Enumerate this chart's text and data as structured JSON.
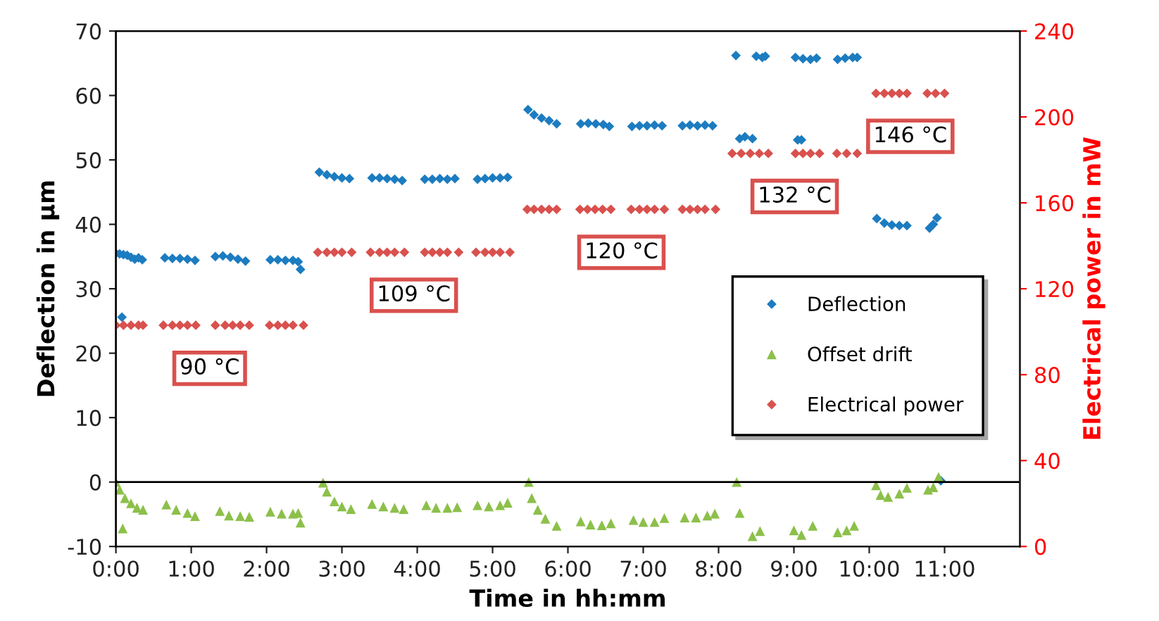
{
  "chart_data": {
    "type": "scatter",
    "xlabel": "Time in hh:mm",
    "ylabel": "Deflection in µm",
    "y2label": "Electrical power in mW",
    "xlim": [
      0,
      12
    ],
    "xticks": [
      {
        "value": 0,
        "label": "0:00"
      },
      {
        "value": 1,
        "label": "1:00"
      },
      {
        "value": 2,
        "label": "2:00"
      },
      {
        "value": 3,
        "label": "3:00"
      },
      {
        "value": 4,
        "label": "4:00"
      },
      {
        "value": 5,
        "label": "5:00"
      },
      {
        "value": 6,
        "label": "6:00"
      },
      {
        "value": 7,
        "label": "7:00"
      },
      {
        "value": 8,
        "label": "8:00"
      },
      {
        "value": 9,
        "label": "9:00"
      },
      {
        "value": 10,
        "label": "10:00"
      },
      {
        "value": 11,
        "label": "11:00"
      }
    ],
    "ylim": [
      -10,
      70
    ],
    "yticks": [
      -10,
      0,
      10,
      20,
      30,
      40,
      50,
      60,
      70
    ],
    "y2lim": [
      0,
      240
    ],
    "y2ticks": [
      0,
      40,
      80,
      120,
      160,
      200,
      240
    ],
    "grid": false,
    "legend": "right",
    "ref_lines": [
      {
        "axis": "y",
        "value": 0,
        "color": "#000000"
      }
    ],
    "annotations": [
      "90 °C",
      "109 °C",
      "120 °C",
      "132 °C",
      "146 °C"
    ],
    "series": [
      {
        "name": "Deflection",
        "color": "#1c7cc0",
        "marker": "diamond",
        "x": [
          0.0,
          0.05,
          0.08,
          0.1,
          0.15,
          0.2,
          0.25,
          0.3,
          0.35,
          0.65,
          0.75,
          0.85,
          0.95,
          1.05,
          1.32,
          1.42,
          1.52,
          1.62,
          1.72,
          2.05,
          2.15,
          2.25,
          2.35,
          2.42,
          2.45,
          2.7,
          2.8,
          2.9,
          3.0,
          3.1,
          3.4,
          3.5,
          3.6,
          3.7,
          3.8,
          4.1,
          4.2,
          4.3,
          4.4,
          4.5,
          4.8,
          4.9,
          5.0,
          5.1,
          5.2,
          5.47,
          5.55,
          5.65,
          5.75,
          5.85,
          6.17,
          6.27,
          6.37,
          6.47,
          6.55,
          6.85,
          6.95,
          7.05,
          7.15,
          7.25,
          7.52,
          7.62,
          7.72,
          7.82,
          7.92,
          8.23,
          8.28,
          8.35,
          8.45,
          8.5,
          8.58,
          8.62,
          9.02,
          9.05,
          9.1,
          9.12,
          9.22,
          9.3,
          9.58,
          9.68,
          9.78,
          9.84,
          10.1,
          10.2,
          10.3,
          10.4,
          10.5,
          10.8,
          10.85,
          10.9,
          10.95
        ],
        "values": [
          35.5,
          35.4,
          25.6,
          35.3,
          35.2,
          34.9,
          34.6,
          34.8,
          34.5,
          34.8,
          34.7,
          34.7,
          34.6,
          34.4,
          35.0,
          35.1,
          34.9,
          34.6,
          34.3,
          34.5,
          34.5,
          34.4,
          34.4,
          34.2,
          33.0,
          48.1,
          47.7,
          47.4,
          47.2,
          47.1,
          47.2,
          47.2,
          47.1,
          47.0,
          46.8,
          47.0,
          47.0,
          47.1,
          47.0,
          47.1,
          47.0,
          47.1,
          47.2,
          47.2,
          47.3,
          57.8,
          57.0,
          56.5,
          56.1,
          55.6,
          55.6,
          55.7,
          55.6,
          55.5,
          55.2,
          55.2,
          55.3,
          55.3,
          55.4,
          55.3,
          55.3,
          55.4,
          55.3,
          55.4,
          55.3,
          66.2,
          53.3,
          53.6,
          53.3,
          66.1,
          65.9,
          66.1,
          65.9,
          53.1,
          53.1,
          65.7,
          65.6,
          65.8,
          65.6,
          65.8,
          65.9,
          65.9,
          40.9,
          40.2,
          39.9,
          39.8,
          39.8,
          39.4,
          40.0,
          41.0,
          0.2
        ]
      },
      {
        "name": "Offset drift",
        "color": "#8cc04a",
        "marker": "triangle",
        "x": [
          0.0,
          0.05,
          0.09,
          0.12,
          0.2,
          0.28,
          0.36,
          0.67,
          0.8,
          0.95,
          1.05,
          1.38,
          1.5,
          1.65,
          1.77,
          2.05,
          2.2,
          2.35,
          2.42,
          2.45,
          2.75,
          2.8,
          2.9,
          3.0,
          3.12,
          3.4,
          3.55,
          3.7,
          3.82,
          4.12,
          4.25,
          4.4,
          4.53,
          4.8,
          4.95,
          5.1,
          5.2,
          5.48,
          5.52,
          5.6,
          5.7,
          5.85,
          6.17,
          6.3,
          6.45,
          6.57,
          6.87,
          7.0,
          7.15,
          7.28,
          7.55,
          7.7,
          7.85,
          7.95,
          8.24,
          8.28,
          8.45,
          8.55,
          9.0,
          9.1,
          9.25,
          9.58,
          9.7,
          9.8,
          10.09,
          10.15,
          10.25,
          10.4,
          10.5,
          10.78,
          10.85,
          10.92
        ],
        "values": [
          0.0,
          -1.2,
          -7.2,
          -2.5,
          -3.3,
          -4.0,
          -4.3,
          -3.5,
          -4.3,
          -4.8,
          -5.3,
          -4.5,
          -5.2,
          -5.3,
          -5.4,
          -4.6,
          -4.9,
          -4.9,
          -4.8,
          -6.3,
          -0.1,
          -1.5,
          -3.0,
          -3.8,
          -4.2,
          -3.4,
          -3.8,
          -4.0,
          -4.2,
          -3.6,
          -4.0,
          -4.0,
          -3.9,
          -3.6,
          -3.8,
          -3.6,
          -3.2,
          0.0,
          -2.5,
          -4.3,
          -5.7,
          -6.8,
          -6.1,
          -6.6,
          -6.7,
          -6.4,
          -5.9,
          -6.2,
          -6.2,
          -5.6,
          -5.5,
          -5.5,
          -5.2,
          -4.9,
          0.0,
          -4.8,
          -8.4,
          -7.6,
          -7.5,
          -8.2,
          -6.8,
          -7.8,
          -7.5,
          -6.8,
          -0.5,
          -2.0,
          -2.3,
          -1.8,
          -0.9,
          -1.2,
          -0.8,
          0.8
        ]
      },
      {
        "name": "Electrical power",
        "color": "#d9514e",
        "marker": "diamond",
        "axis": "y2",
        "x": [
          0.0,
          0.1,
          0.2,
          0.3,
          0.36,
          0.63,
          0.75,
          0.85,
          0.95,
          1.06,
          1.32,
          1.45,
          1.55,
          1.65,
          1.77,
          2.04,
          2.15,
          2.25,
          2.35,
          2.49,
          2.68,
          2.8,
          2.9,
          3.0,
          3.13,
          3.38,
          3.5,
          3.6,
          3.7,
          3.83,
          4.1,
          4.2,
          4.3,
          4.4,
          4.55,
          4.78,
          4.9,
          5.0,
          5.1,
          5.23,
          5.46,
          5.55,
          5.65,
          5.75,
          5.85,
          6.16,
          6.26,
          6.36,
          6.46,
          6.57,
          6.84,
          6.95,
          7.05,
          7.15,
          7.28,
          7.52,
          7.62,
          7.72,
          7.82,
          7.96,
          8.18,
          8.3,
          8.42,
          8.54,
          8.66,
          9.02,
          9.12,
          9.22,
          9.34,
          9.57,
          9.7,
          9.84,
          10.09,
          10.2,
          10.3,
          10.4,
          10.5,
          10.77,
          10.88,
          11.0
        ],
        "values": [
          103,
          103,
          103,
          103,
          103,
          103,
          103,
          103,
          103,
          103,
          103,
          103,
          103,
          103,
          103,
          103,
          103,
          103,
          103,
          103,
          137,
          137,
          137,
          137,
          137,
          137,
          137,
          137,
          137,
          137,
          137,
          137,
          137,
          137,
          137,
          137,
          137,
          137,
          137,
          137,
          157,
          157,
          157,
          157,
          157,
          157,
          157,
          157,
          157,
          157,
          157,
          157,
          157,
          157,
          157,
          157,
          157,
          157,
          157,
          157,
          183,
          183,
          183,
          183,
          183,
          183,
          183,
          183,
          183,
          183,
          183,
          183,
          211,
          211,
          211,
          211,
          211,
          211,
          211,
          211
        ]
      }
    ]
  }
}
